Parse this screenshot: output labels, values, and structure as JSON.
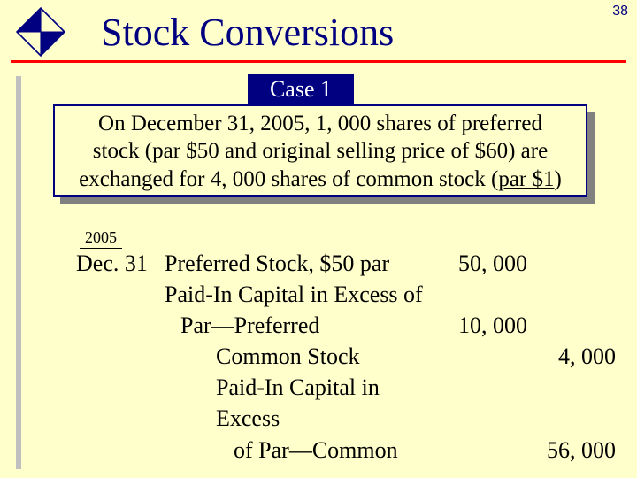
{
  "page_number": "38",
  "title": "Stock Conversions",
  "case_label": "Case 1",
  "scenario": {
    "line1": "On December 31, 2005, 1, 000 shares of preferred",
    "line2": "stock (par $50 and original selling price of $60) are",
    "line3_a": "exchanged for 4, 000 shares of common stock (",
    "line3_underline": "par $1",
    "line3_b": ")"
  },
  "journal": {
    "year": "2005",
    "rows": [
      {
        "date": "Dec. 31",
        "desc": "Preferred Stock, $50 par",
        "debit": "50, 000",
        "credit": "",
        "indent": ""
      },
      {
        "date": "",
        "desc": "Paid-In Capital in Excess of",
        "debit": "",
        "credit": "",
        "indent": ""
      },
      {
        "date": "",
        "desc": "Par—Preferred",
        "debit": "10, 000",
        "credit": "",
        "indent": "indent1"
      },
      {
        "date": "",
        "desc": "Common Stock",
        "debit": "",
        "credit": "4, 000",
        "indent": "indent2"
      },
      {
        "date": "",
        "desc": "Paid-In Capital in Excess",
        "debit": "",
        "credit": "",
        "indent": "indent2"
      },
      {
        "date": "",
        "desc": "of Par—Common",
        "debit": "",
        "credit": "56, 000",
        "indent": "indent3"
      }
    ]
  },
  "colors": {
    "background": "#ffffcc",
    "title": "#000080",
    "divider": "#ff0000",
    "case_bg": "#000080",
    "shadow": "#808080"
  }
}
